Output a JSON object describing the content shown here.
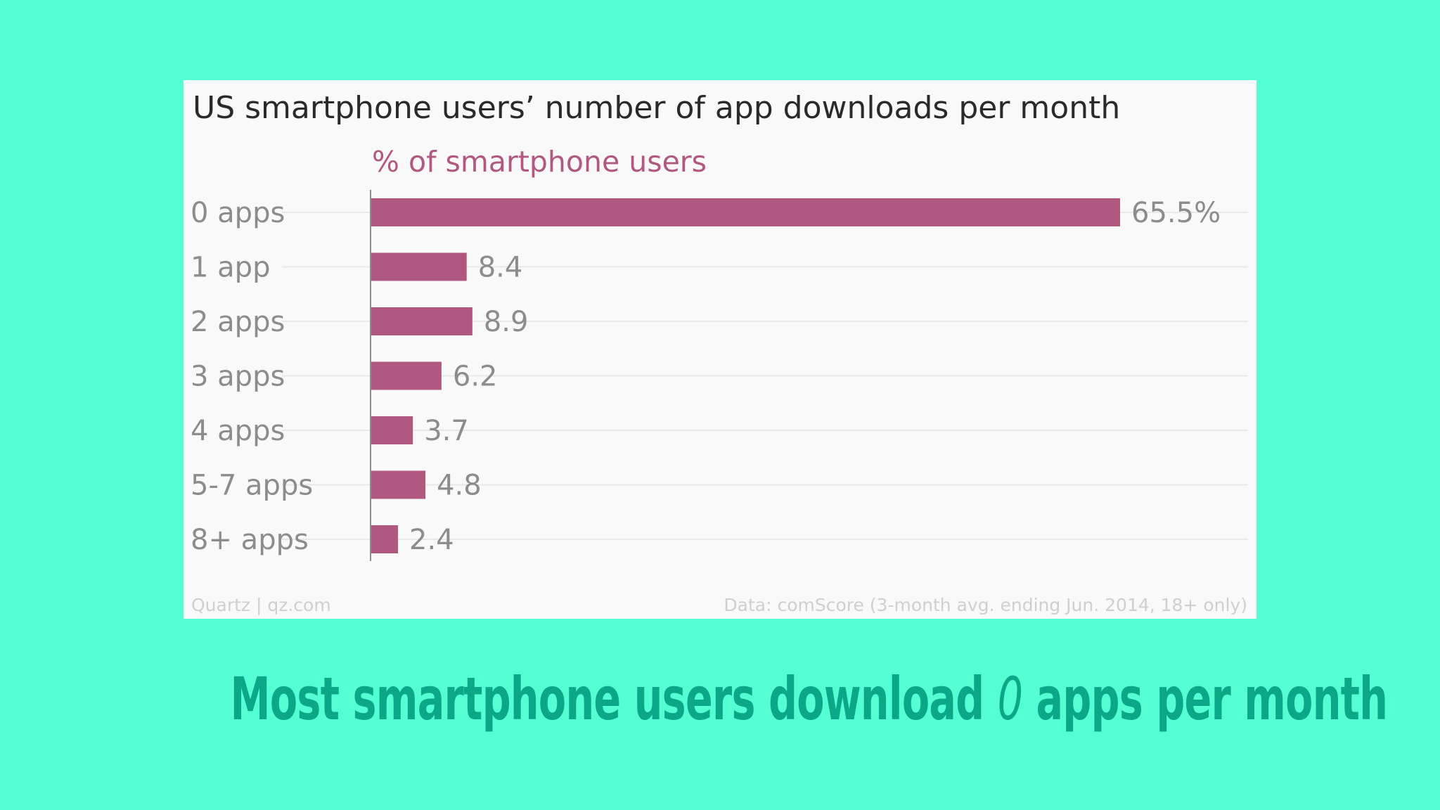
{
  "slide": {
    "headline_pre": "Most smartphone users download ",
    "headline_em": "0",
    "headline_post": " apps per month"
  },
  "colors": {
    "background": "#55ffd4",
    "bar": "#b0587f",
    "headline": "#0aa886"
  },
  "chart_data": {
    "type": "bar",
    "orientation": "horizontal",
    "title": "US smartphone users’ number of app downloads per month",
    "subtitle": "% of smartphone users",
    "categories": [
      "0 apps",
      "1 app",
      "2 apps",
      "3 apps",
      "4 apps",
      "5-7 apps",
      "8+ apps"
    ],
    "values": [
      65.5,
      8.4,
      8.9,
      6.2,
      3.7,
      4.8,
      2.4
    ],
    "value_labels": [
      "65.5%",
      "8.4",
      "8.9",
      "6.2",
      "3.7",
      "4.8",
      "2.4"
    ],
    "xlim": [
      0,
      65.5
    ],
    "grid": true,
    "source_left": "Quartz | qz.com",
    "source_right": "Data: comScore (3-month avg. ending Jun. 2014, 18+ only)"
  }
}
